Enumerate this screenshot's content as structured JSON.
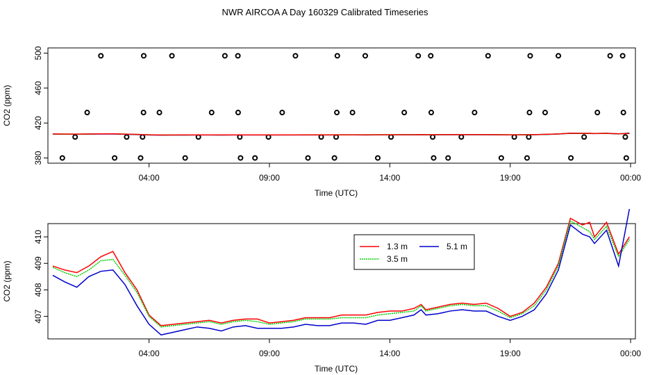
{
  "page": {
    "title": "NWR AIRCOA A  Day 160329  Calibrated Timeseries"
  },
  "chart_data": [
    {
      "type": "scatter",
      "xlabel": "Time (UTC)",
      "ylabel": "CO2 (ppm)",
      "x_ticks": [
        "04:00",
        "09:00",
        "14:00",
        "19:00",
        "00:00"
      ],
      "x_tick_hours": [
        4,
        9,
        14,
        19,
        24
      ],
      "xlim": [
        -0.2,
        24.2
      ],
      "y_ticks": [
        380,
        420,
        460,
        500
      ],
      "ylim": [
        374,
        506
      ],
      "calibration_points": [
        {
          "t": 0.4,
          "v": 380
        },
        {
          "t": 0.93,
          "v": 404
        },
        {
          "t": 1.43,
          "v": 432
        },
        {
          "t": 2.0,
          "v": 497
        },
        {
          "t": 2.57,
          "v": 380
        },
        {
          "t": 3.07,
          "v": 404
        },
        {
          "t": 3.65,
          "v": 380
        },
        {
          "t": 3.73,
          "v": 404
        },
        {
          "t": 3.77,
          "v": 432
        },
        {
          "t": 3.78,
          "v": 497
        },
        {
          "t": 4.43,
          "v": 432
        },
        {
          "t": 4.95,
          "v": 497
        },
        {
          "t": 5.5,
          "v": 380
        },
        {
          "t": 6.05,
          "v": 404
        },
        {
          "t": 6.6,
          "v": 432
        },
        {
          "t": 7.15,
          "v": 497
        },
        {
          "t": 7.69,
          "v": 497
        },
        {
          "t": 7.7,
          "v": 432
        },
        {
          "t": 7.77,
          "v": 404
        },
        {
          "t": 7.8,
          "v": 380
        },
        {
          "t": 8.4,
          "v": 380
        },
        {
          "t": 8.96,
          "v": 404
        },
        {
          "t": 9.53,
          "v": 432
        },
        {
          "t": 10.08,
          "v": 497
        },
        {
          "t": 10.6,
          "v": 380
        },
        {
          "t": 11.15,
          "v": 404
        },
        {
          "t": 11.7,
          "v": 380
        },
        {
          "t": 11.77,
          "v": 404
        },
        {
          "t": 11.8,
          "v": 432
        },
        {
          "t": 11.82,
          "v": 497
        },
        {
          "t": 12.45,
          "v": 432
        },
        {
          "t": 12.98,
          "v": 497
        },
        {
          "t": 13.5,
          "v": 380
        },
        {
          "t": 14.05,
          "v": 404
        },
        {
          "t": 14.6,
          "v": 432
        },
        {
          "t": 15.18,
          "v": 497
        },
        {
          "t": 15.7,
          "v": 497
        },
        {
          "t": 15.72,
          "v": 432
        },
        {
          "t": 15.78,
          "v": 404
        },
        {
          "t": 15.82,
          "v": 380
        },
        {
          "t": 16.42,
          "v": 380
        },
        {
          "t": 16.97,
          "v": 404
        },
        {
          "t": 17.52,
          "v": 432
        },
        {
          "t": 18.08,
          "v": 497
        },
        {
          "t": 18.63,
          "v": 380
        },
        {
          "t": 19.17,
          "v": 404
        },
        {
          "t": 19.7,
          "v": 380
        },
        {
          "t": 19.77,
          "v": 404
        },
        {
          "t": 19.8,
          "v": 432
        },
        {
          "t": 19.83,
          "v": 497
        },
        {
          "t": 20.45,
          "v": 432
        },
        {
          "t": 21.0,
          "v": 497
        },
        {
          "t": 21.52,
          "v": 380
        },
        {
          "t": 22.07,
          "v": 404
        },
        {
          "t": 22.62,
          "v": 432
        },
        {
          "t": 23.15,
          "v": 497
        },
        {
          "t": 23.67,
          "v": 497
        },
        {
          "t": 23.7,
          "v": 432
        },
        {
          "t": 23.78,
          "v": 404
        },
        {
          "t": 23.82,
          "v": 380
        }
      ],
      "line_level": 407
    },
    {
      "type": "line",
      "xlabel": "Time (UTC)",
      "ylabel": "CO2 (ppm)",
      "x_ticks": [
        "04:00",
        "09:00",
        "14:00",
        "19:00",
        "00:00"
      ],
      "x_tick_hours": [
        4,
        9,
        14,
        19,
        24
      ],
      "xlim": [
        -0.2,
        24.2
      ],
      "y_ticks": [
        407,
        408,
        409,
        410
      ],
      "ylim": [
        406.15,
        410.5
      ],
      "legend_position": "top-right",
      "x": [
        0.0,
        0.5,
        1.0,
        1.5,
        2.0,
        2.5,
        3.0,
        3.5,
        4.0,
        4.5,
        5.0,
        5.5,
        6.0,
        6.5,
        7.0,
        7.5,
        8.0,
        8.5,
        9.0,
        9.5,
        10.0,
        10.5,
        11.0,
        11.5,
        12.0,
        12.5,
        13.0,
        13.5,
        14.0,
        14.5,
        15.0,
        15.3,
        15.5,
        16.0,
        16.5,
        17.0,
        17.5,
        18.0,
        18.5,
        19.0,
        19.5,
        20.0,
        20.5,
        21.0,
        21.5,
        22.0,
        22.3,
        22.5,
        23.0,
        23.5,
        23.95
      ],
      "series": [
        {
          "name": "1.3 m",
          "color": "#ff0000",
          "values": [
            408.9,
            408.75,
            408.65,
            408.9,
            409.25,
            409.45,
            408.65,
            408.0,
            407.05,
            406.65,
            406.7,
            406.75,
            406.8,
            406.85,
            406.75,
            406.85,
            406.9,
            406.9,
            406.75,
            406.8,
            406.85,
            406.95,
            406.95,
            406.95,
            407.05,
            407.05,
            407.05,
            407.15,
            407.2,
            407.2,
            407.3,
            407.45,
            407.25,
            407.35,
            407.45,
            407.5,
            407.45,
            407.5,
            407.3,
            407.0,
            407.15,
            407.5,
            408.1,
            409.0,
            410.7,
            410.45,
            410.55,
            410.0,
            410.55,
            409.35,
            410.0
          ]
        },
        {
          "name": "3.5 m",
          "color": "#00cc00",
          "values": [
            408.85,
            408.65,
            408.5,
            408.75,
            409.1,
            409.15,
            408.55,
            407.9,
            407.0,
            406.6,
            406.65,
            406.7,
            406.75,
            406.8,
            406.7,
            406.8,
            406.85,
            406.8,
            406.7,
            406.75,
            406.8,
            406.9,
            406.9,
            406.9,
            406.95,
            406.95,
            406.95,
            407.05,
            407.1,
            407.15,
            407.2,
            407.4,
            407.2,
            407.3,
            407.4,
            407.45,
            407.4,
            407.4,
            407.2,
            406.95,
            407.1,
            407.4,
            408.0,
            408.9,
            410.6,
            410.35,
            410.2,
            409.9,
            410.4,
            409.25,
            409.9
          ]
        },
        {
          "name": "5.1 m",
          "color": "#0000cc",
          "values": [
            408.55,
            408.3,
            408.1,
            408.5,
            408.7,
            408.75,
            408.2,
            407.4,
            406.7,
            406.3,
            406.4,
            406.5,
            406.6,
            406.55,
            406.45,
            406.6,
            406.65,
            406.55,
            406.55,
            406.55,
            406.6,
            406.7,
            406.65,
            406.65,
            406.75,
            406.75,
            406.7,
            406.85,
            406.85,
            406.95,
            407.05,
            407.25,
            407.05,
            407.1,
            407.2,
            407.25,
            407.2,
            407.2,
            407.0,
            406.85,
            407.0,
            407.25,
            407.85,
            408.75,
            410.45,
            410.1,
            410.0,
            409.75,
            410.25,
            408.9,
            411.05
          ]
        }
      ]
    }
  ]
}
